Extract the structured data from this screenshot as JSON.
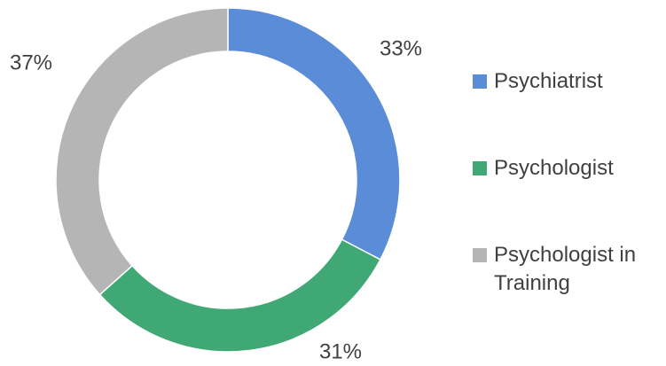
{
  "chart_data": {
    "type": "donut",
    "categories": [
      "Psychiatrist",
      "Psychologist",
      "Psychologist in Training"
    ],
    "values": [
      33,
      31,
      37
    ],
    "value_labels": [
      "33%",
      "31%",
      "37%"
    ],
    "colors": [
      "#5a8cd8",
      "#3fa874",
      "#b5b5b5"
    ]
  }
}
